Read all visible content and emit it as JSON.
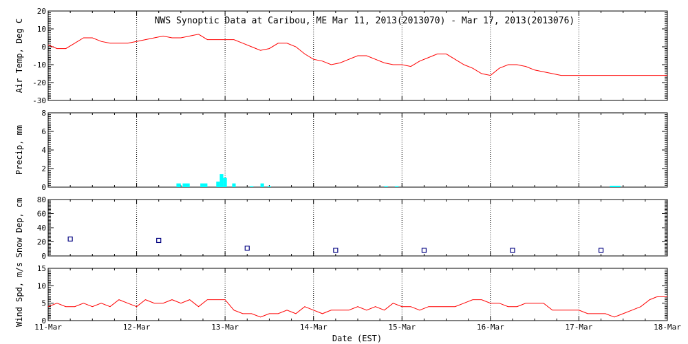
{
  "title": "NWS Synoptic Data at Caribou, ME   Mar 11, 2013(2013070) - Mar 17, 2013(2013076)",
  "xlabel": "Date (EST)",
  "x_ticks": [
    "11-Mar",
    "12-Mar",
    "13-Mar",
    "14-Mar",
    "15-Mar",
    "16-Mar",
    "17-Mar",
    "18-Mar"
  ],
  "colors": {
    "temp": "#ff0000",
    "precip": "#00ffff",
    "snow": "#000080",
    "wind": "#ff0000"
  },
  "chart_data": [
    {
      "type": "line",
      "ylabel": "Air Temp, Deg C",
      "ylim": [
        -30,
        20
      ],
      "yticks": [
        20,
        10,
        0,
        -10,
        -20,
        -30
      ],
      "grid": true,
      "x_unit": "days since 11-Mar 00:00",
      "x": [
        0,
        0.1,
        0.2,
        0.3,
        0.4,
        0.5,
        0.6,
        0.7,
        0.8,
        0.9,
        1.0,
        1.1,
        1.2,
        1.3,
        1.4,
        1.5,
        1.6,
        1.7,
        1.8,
        1.9,
        2.0,
        2.1,
        2.2,
        2.3,
        2.4,
        2.5,
        2.6,
        2.7,
        2.8,
        2.9,
        3.0,
        3.1,
        3.2,
        3.3,
        3.4,
        3.5,
        3.6,
        3.7,
        3.8,
        3.9,
        4.0,
        4.1,
        4.2,
        4.3,
        4.4,
        4.5,
        4.6,
        4.7,
        4.8,
        4.9,
        5.0,
        5.1,
        5.2,
        5.3,
        5.4,
        5.5,
        5.6,
        5.7,
        5.8,
        5.9,
        6.0,
        6.1,
        6.2,
        6.3,
        6.4,
        6.5,
        6.6,
        6.7,
        6.8,
        6.9,
        7.0
      ],
      "y": [
        1,
        -1,
        -1,
        2,
        5,
        5,
        3,
        2,
        2,
        2,
        3,
        4,
        5,
        6,
        5,
        5,
        6,
        7,
        4,
        4,
        4,
        4,
        2,
        0,
        -2,
        -1,
        2,
        2,
        0,
        -4,
        -7,
        -8,
        -10,
        -9,
        -7,
        -5,
        -5,
        -7,
        -9,
        -10,
        -10,
        -11,
        -8,
        -6,
        -4,
        -4,
        -7,
        -10,
        -12,
        -15,
        -16,
        -12,
        -10,
        -10,
        -11,
        -13,
        -14,
        -15,
        -16,
        -16,
        -16,
        -16,
        -16,
        -16,
        -16,
        -16,
        -16,
        -16,
        -16,
        -16,
        -16
      ]
    },
    {
      "type": "bar",
      "ylabel": "Precip, mm",
      "ylim": [
        0,
        8
      ],
      "yticks": [
        8,
        6,
        4,
        2,
        0
      ],
      "grid": true,
      "x_unit": "days since 11-Mar 00:00",
      "bars": [
        {
          "x": 1.45,
          "w": 0.05,
          "v": 0.4
        },
        {
          "x": 1.52,
          "w": 0.08,
          "v": 0.4
        },
        {
          "x": 1.72,
          "w": 0.08,
          "v": 0.4
        },
        {
          "x": 1.9,
          "w": 0.04,
          "v": 0.6
        },
        {
          "x": 1.94,
          "w": 0.04,
          "v": 1.4
        },
        {
          "x": 1.98,
          "w": 0.04,
          "v": 1.0
        },
        {
          "x": 2.08,
          "w": 0.04,
          "v": 0.4
        },
        {
          "x": 2.28,
          "w": 0.04,
          "v": 0.1
        },
        {
          "x": 2.4,
          "w": 0.04,
          "v": 0.4
        },
        {
          "x": 2.48,
          "w": 0.04,
          "v": 0.1
        },
        {
          "x": 3.8,
          "w": 0.04,
          "v": 0.1
        },
        {
          "x": 3.92,
          "w": 0.04,
          "v": 0.1
        },
        {
          "x": 6.35,
          "w": 0.12,
          "v": 0.15
        }
      ]
    },
    {
      "type": "scatter",
      "ylabel": "Snow Dep, cm",
      "ylim": [
        0,
        80
      ],
      "yticks": [
        80,
        60,
        40,
        20,
        0
      ],
      "grid": true,
      "x_unit": "days since 11-Mar 00:00",
      "x": [
        0.25,
        1.25,
        2.25,
        3.25,
        4.25,
        5.25,
        6.25
      ],
      "y": [
        24,
        22,
        11,
        8,
        8,
        8,
        8
      ]
    },
    {
      "type": "line",
      "ylabel": "Wind Spd, m/s",
      "ylim": [
        0,
        15
      ],
      "yticks": [
        15,
        10,
        5,
        0
      ],
      "grid": true,
      "x_unit": "days since 11-Mar 00:00",
      "x": [
        0,
        0.1,
        0.2,
        0.3,
        0.4,
        0.5,
        0.6,
        0.7,
        0.8,
        0.9,
        1.0,
        1.1,
        1.2,
        1.3,
        1.4,
        1.5,
        1.6,
        1.7,
        1.8,
        1.9,
        2.0,
        2.1,
        2.2,
        2.3,
        2.4,
        2.5,
        2.6,
        2.7,
        2.8,
        2.9,
        3.0,
        3.1,
        3.2,
        3.3,
        3.4,
        3.5,
        3.6,
        3.7,
        3.8,
        3.9,
        4.0,
        4.1,
        4.2,
        4.3,
        4.4,
        4.5,
        4.6,
        4.7,
        4.8,
        4.9,
        5.0,
        5.1,
        5.2,
        5.3,
        5.4,
        5.5,
        5.6,
        5.7,
        5.8,
        5.9,
        6.0,
        6.1,
        6.2,
        6.3,
        6.4,
        6.5,
        6.6,
        6.7,
        6.8,
        6.9,
        7.0
      ],
      "y": [
        4,
        5,
        4,
        4,
        5,
        4,
        5,
        4,
        6,
        5,
        4,
        6,
        5,
        5,
        6,
        5,
        6,
        4,
        6,
        6,
        6,
        3,
        2,
        2,
        1,
        2,
        2,
        3,
        2,
        4,
        3,
        2,
        3,
        3,
        3,
        4,
        3,
        4,
        3,
        5,
        4,
        4,
        3,
        4,
        4,
        4,
        4,
        5,
        6,
        6,
        5,
        5,
        4,
        4,
        5,
        5,
        5,
        3,
        3,
        3,
        3,
        2,
        2,
        2,
        1,
        2,
        3,
        4,
        6,
        7,
        7
      ]
    }
  ]
}
